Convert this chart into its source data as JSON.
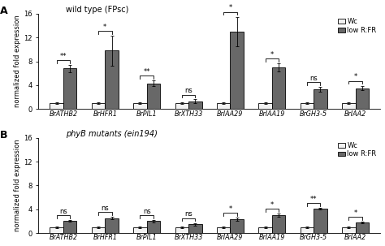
{
  "panel_A": {
    "title": "wild type (FPsc)",
    "title_italic": false,
    "label": "A",
    "genes": [
      "BrATHB2",
      "BrHFR1",
      "BrPIL1",
      "BrXTH33",
      "BrIAA29",
      "BrIAA19",
      "BrGH3-5",
      "BrIAA2"
    ],
    "Wc_vals": [
      1.0,
      1.0,
      1.0,
      1.0,
      1.0,
      1.0,
      1.0,
      1.0
    ],
    "lowRFR_vals": [
      6.8,
      9.8,
      4.3,
      1.3,
      13.0,
      7.0,
      3.3,
      3.5
    ],
    "Wc_err": [
      0.12,
      0.12,
      0.12,
      0.12,
      0.12,
      0.12,
      0.12,
      0.12
    ],
    "lowRFR_err": [
      0.6,
      2.5,
      0.5,
      0.3,
      2.5,
      0.7,
      0.4,
      0.4
    ],
    "sig_labels": [
      "**",
      "*",
      "**",
      "ns",
      "*",
      "*",
      "ns",
      "*"
    ],
    "ylim": [
      0,
      16
    ],
    "yticks": [
      0,
      4,
      8,
      12,
      16
    ]
  },
  "panel_B": {
    "title": "phyB mutants (ein194)",
    "title_italic": true,
    "label": "B",
    "genes": [
      "BrATHB2",
      "BrHFR1",
      "BrPIL1",
      "BrXTH33",
      "BrIAA29",
      "BrIAA19",
      "BrGH3-5",
      "BrIAA2"
    ],
    "Wc_vals": [
      1.0,
      1.0,
      1.0,
      1.0,
      1.0,
      1.0,
      1.0,
      1.0
    ],
    "lowRFR_vals": [
      2.0,
      2.5,
      2.0,
      1.5,
      2.3,
      3.0,
      4.1,
      1.8
    ],
    "Wc_err": [
      0.12,
      0.12,
      0.12,
      0.12,
      0.12,
      0.12,
      0.12,
      0.12
    ],
    "lowRFR_err": [
      0.15,
      0.2,
      0.2,
      0.2,
      0.25,
      0.3,
      0.15,
      0.15
    ],
    "sig_labels": [
      "ns",
      "ns",
      "ns",
      "ns",
      "*",
      "*",
      "**",
      "*"
    ],
    "ylim": [
      0,
      16
    ],
    "yticks": [
      0,
      4,
      8,
      12,
      16
    ]
  },
  "bar_width": 0.32,
  "wc_color": "#f2f2f2",
  "lowRFR_color": "#686868",
  "ylabel": "normalized fold expression",
  "legend_wc": "Wc",
  "legend_lowRFR": "low R:FR"
}
